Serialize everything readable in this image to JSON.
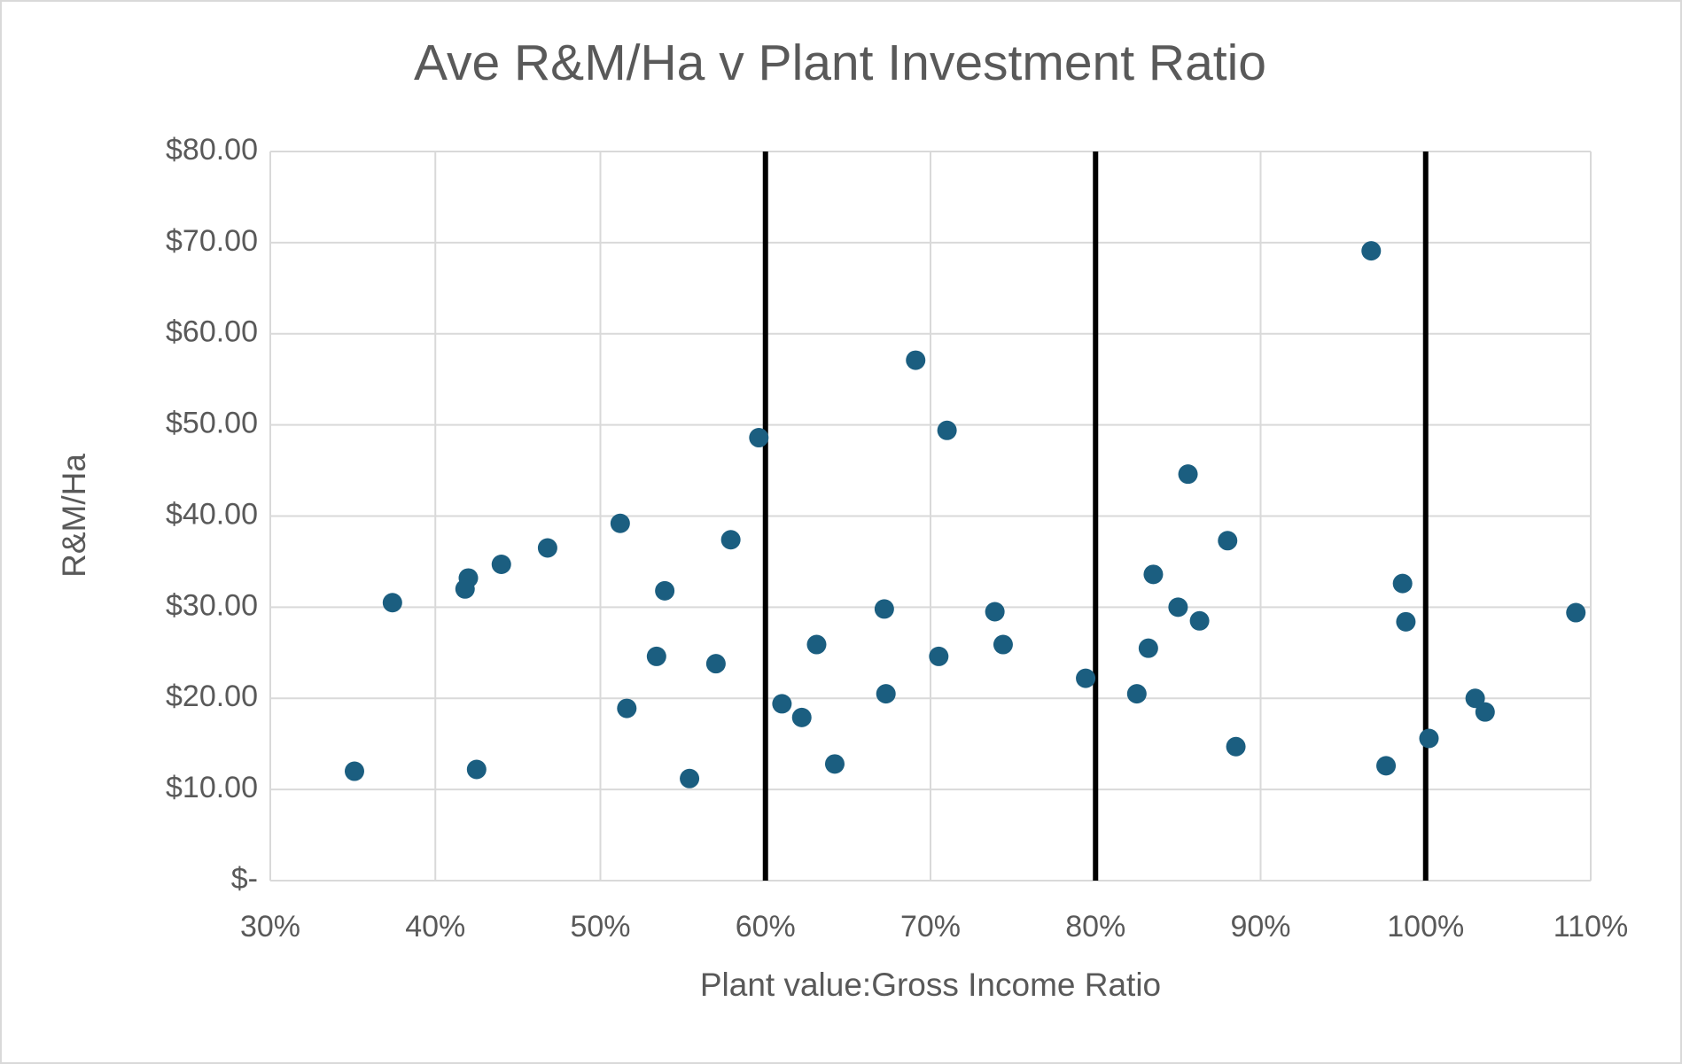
{
  "chart_data": {
    "type": "scatter",
    "title": "Ave R&M/Ha v Plant Investment Ratio",
    "x_label": "Plant value:Gross Income  Ratio",
    "y_label": "R&M/Ha",
    "series": [
      {
        "color": "#1b5e80",
        "x": [
          35.1,
          37.4,
          42.0,
          41.8,
          42.5,
          44.0,
          46.8,
          51.2,
          51.6,
          53.4,
          53.9,
          55.4,
          57.0,
          57.9,
          59.6,
          61.0,
          62.2,
          63.1,
          64.2,
          67.2,
          67.3,
          69.1,
          70.5,
          71.0,
          73.9,
          74.4,
          79.4,
          82.5,
          83.2,
          83.5,
          85.0,
          85.6,
          86.3,
          88.0,
          88.5,
          96.7,
          97.6,
          98.6,
          98.8,
          100.2,
          103.0,
          103.6,
          109.1
        ],
        "values": [
          12.0,
          30.5,
          33.2,
          32.0,
          12.2,
          34.7,
          36.5,
          39.2,
          18.9,
          24.6,
          31.8,
          11.2,
          23.8,
          37.4,
          48.6,
          19.4,
          17.9,
          25.9,
          12.8,
          29.8,
          20.5,
          57.1,
          24.6,
          49.4,
          29.5,
          25.9,
          22.2,
          20.5,
          25.5,
          33.6,
          30.0,
          44.6,
          28.5,
          37.3,
          14.7,
          69.1,
          12.6,
          32.6,
          28.4,
          15.6,
          20.0,
          18.5,
          29.4
        ]
      }
    ],
    "reference_lines": {
      "x": [
        60,
        80,
        100
      ],
      "color": "#000000"
    },
    "xlim": [
      30,
      110
    ],
    "xticks": [
      {
        "value": 30,
        "label": "30%"
      },
      {
        "value": 40,
        "label": "40%"
      },
      {
        "value": 50,
        "label": "50%"
      },
      {
        "value": 60,
        "label": "60%"
      },
      {
        "value": 70,
        "label": "70%"
      },
      {
        "value": 80,
        "label": "80%"
      },
      {
        "value": 90,
        "label": "90%"
      },
      {
        "value": 100,
        "label": "100%"
      },
      {
        "value": 110,
        "label": "110%"
      }
    ],
    "ylim": [
      0,
      80
    ],
    "yticks": [
      {
        "value": 0,
        "label": "$-"
      },
      {
        "value": 10,
        "label": "$10.00"
      },
      {
        "value": 20,
        "label": "$20.00"
      },
      {
        "value": 30,
        "label": "$30.00"
      },
      {
        "value": 40,
        "label": "$40.00"
      },
      {
        "value": 50,
        "label": "$50.00"
      },
      {
        "value": 60,
        "label": "$60.00"
      },
      {
        "value": 70,
        "label": "$70.00"
      },
      {
        "value": 80,
        "label": "$80.00"
      }
    ],
    "grid": true
  }
}
